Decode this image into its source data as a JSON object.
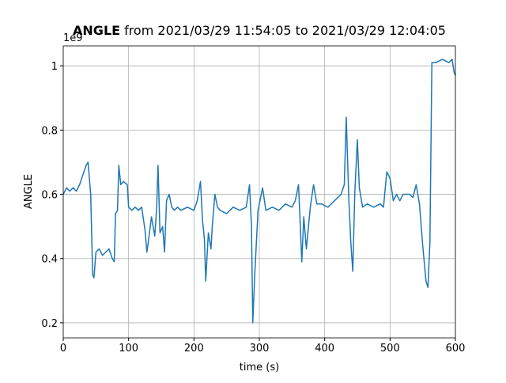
{
  "chart_data": {
    "type": "line",
    "title": "ANGLE",
    "subtitle": "from 2021/03/29 11:54:05 to 2021/03/29 12:04:05",
    "xlabel": "time (s)",
    "ylabel": "ANGLE",
    "offset_text": "1e9",
    "grid": true,
    "xlim": [
      0,
      600
    ],
    "xticks": [
      0,
      100,
      200,
      300,
      400,
      500,
      600
    ],
    "ylim": [
      0.153,
      1.062
    ],
    "yticks": [
      0.2,
      0.4,
      0.6,
      0.8,
      1.0
    ],
    "x": [
      0,
      5,
      10,
      15,
      20,
      25,
      30,
      35,
      38,
      42,
      45,
      47,
      50,
      55,
      60,
      65,
      70,
      75,
      78,
      80,
      83,
      85,
      88,
      92,
      98,
      100,
      105,
      110,
      115,
      120,
      125,
      128,
      130,
      135,
      140,
      143,
      145,
      148,
      152,
      155,
      158,
      162,
      166,
      170,
      175,
      180,
      190,
      200,
      205,
      210,
      213,
      216,
      218,
      222,
      226,
      228,
      232,
      236,
      240,
      250,
      260,
      270,
      280,
      285,
      288,
      290,
      293,
      298,
      305,
      310,
      320,
      330,
      340,
      350,
      355,
      360,
      365,
      368,
      372,
      378,
      383,
      388,
      395,
      405,
      415,
      425,
      430,
      433,
      437,
      440,
      443,
      446,
      450,
      453,
      458,
      465,
      475,
      485,
      490,
      495,
      500,
      505,
      510,
      515,
      520,
      530,
      535,
      540,
      545,
      550,
      555,
      558,
      561,
      564,
      570,
      580,
      590,
      595,
      598,
      600
    ],
    "series": [
      {
        "name": "ANGLE",
        "color": "#1f77b4",
        "values": [
          0.6,
          0.62,
          0.61,
          0.62,
          0.61,
          0.63,
          0.66,
          0.69,
          0.7,
          0.6,
          0.35,
          0.34,
          0.42,
          0.43,
          0.41,
          0.42,
          0.43,
          0.4,
          0.39,
          0.54,
          0.55,
          0.69,
          0.63,
          0.64,
          0.63,
          0.56,
          0.55,
          0.56,
          0.55,
          0.56,
          0.49,
          0.42,
          0.45,
          0.53,
          0.47,
          0.56,
          0.69,
          0.48,
          0.5,
          0.42,
          0.58,
          0.6,
          0.56,
          0.55,
          0.56,
          0.55,
          0.56,
          0.55,
          0.58,
          0.64,
          0.52,
          0.46,
          0.33,
          0.48,
          0.43,
          0.5,
          0.6,
          0.56,
          0.55,
          0.54,
          0.56,
          0.55,
          0.56,
          0.63,
          0.5,
          0.2,
          0.35,
          0.55,
          0.62,
          0.55,
          0.56,
          0.55,
          0.57,
          0.56,
          0.58,
          0.63,
          0.39,
          0.53,
          0.43,
          0.56,
          0.63,
          0.57,
          0.57,
          0.56,
          0.58,
          0.6,
          0.63,
          0.84,
          0.58,
          0.45,
          0.36,
          0.6,
          0.77,
          0.62,
          0.56,
          0.57,
          0.56,
          0.57,
          0.56,
          0.67,
          0.65,
          0.58,
          0.6,
          0.58,
          0.6,
          0.6,
          0.59,
          0.63,
          0.57,
          0.44,
          0.33,
          0.31,
          0.45,
          1.01,
          1.01,
          1.02,
          1.01,
          1.02,
          0.98,
          0.97
        ]
      }
    ]
  }
}
